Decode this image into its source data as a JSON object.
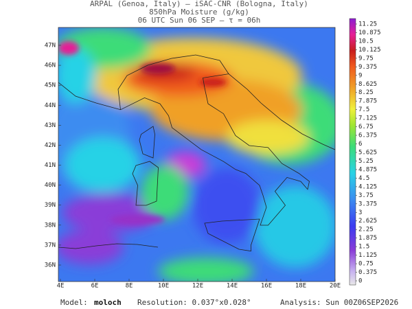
{
  "header": {
    "line1": "ARPAL (Genoa, Italy)  –  iSAC-CNR (Bologna, Italy)",
    "line2": "850hPa Moisture (g/kg)",
    "line3": "06 UTC Sun 06 SEP  –  τ = 06h"
  },
  "map": {
    "lat_labels": [
      "47N",
      "46N",
      "45N",
      "44N",
      "43N",
      "42N",
      "41N",
      "40N",
      "39N",
      "38N",
      "37N",
      "36N"
    ],
    "lon_labels": [
      "4E",
      "6E",
      "8E",
      "10E",
      "12E",
      "14E",
      "16E",
      "18E",
      "20E"
    ]
  },
  "colorbar": {
    "labels": [
      0,
      0.375,
      0.75,
      1.125,
      1.5,
      1.875,
      2.25,
      2.625,
      3,
      3.375,
      3.75,
      4.125,
      4.5,
      4.875,
      5.25,
      5.625,
      6,
      6.375,
      6.75,
      7.125,
      7.5,
      7.875,
      8.25,
      8.625,
      9,
      9.375,
      9.75,
      10.125,
      10.5,
      10.875,
      11.25
    ]
  },
  "footer": {
    "model_label": "Model:",
    "model_value": "moloch",
    "resolution": "Resolution: 0.037°x0.028°",
    "analysis": "Analysis: Sun 00Z06SEP2026"
  }
}
